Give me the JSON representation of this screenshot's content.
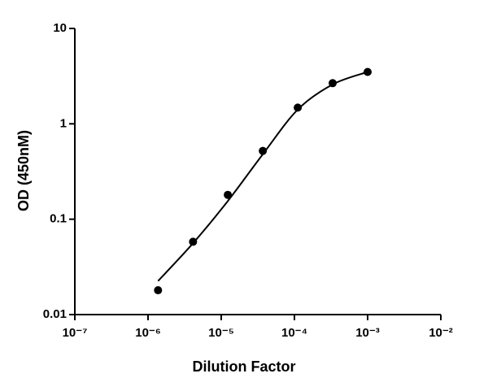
{
  "chart_data": {
    "type": "scatter",
    "x_label": "Dilution Factor",
    "y_label": "OD (450nM)",
    "xlog": true,
    "ylog": true,
    "color": "#000000",
    "points": {
      "x": [
        1.37e-06,
        4.12e-06,
        1.23e-05,
        3.7e-05,
        0.000111,
        0.000333,
        0.001
      ],
      "values": [
        0.018,
        0.058,
        0.18,
        0.52,
        1.48,
        2.67,
        3.5
      ]
    },
    "curve": {
      "x": [
        1.37e-06,
        4.12e-06,
        1.23e-05,
        3.7e-05,
        0.000111,
        0.000333,
        0.001
      ],
      "values": [
        0.0225,
        0.056,
        0.155,
        0.48,
        1.41,
        2.59,
        3.5
      ]
    },
    "xlim": [
      1e-07,
      0.01
    ],
    "xticks": [
      {
        "value": 1e-07,
        "label": "10⁻⁷"
      },
      {
        "value": 1e-06,
        "label": "10⁻⁶"
      },
      {
        "value": 1e-05,
        "label": "10⁻⁵"
      },
      {
        "value": 0.0001,
        "label": "10⁻⁴"
      },
      {
        "value": 0.001,
        "label": "10⁻³"
      },
      {
        "value": 0.01,
        "label": "10⁻²"
      }
    ],
    "ylim": [
      0.01,
      10
    ],
    "yticks": [
      0.01,
      0.1,
      1,
      10
    ]
  }
}
